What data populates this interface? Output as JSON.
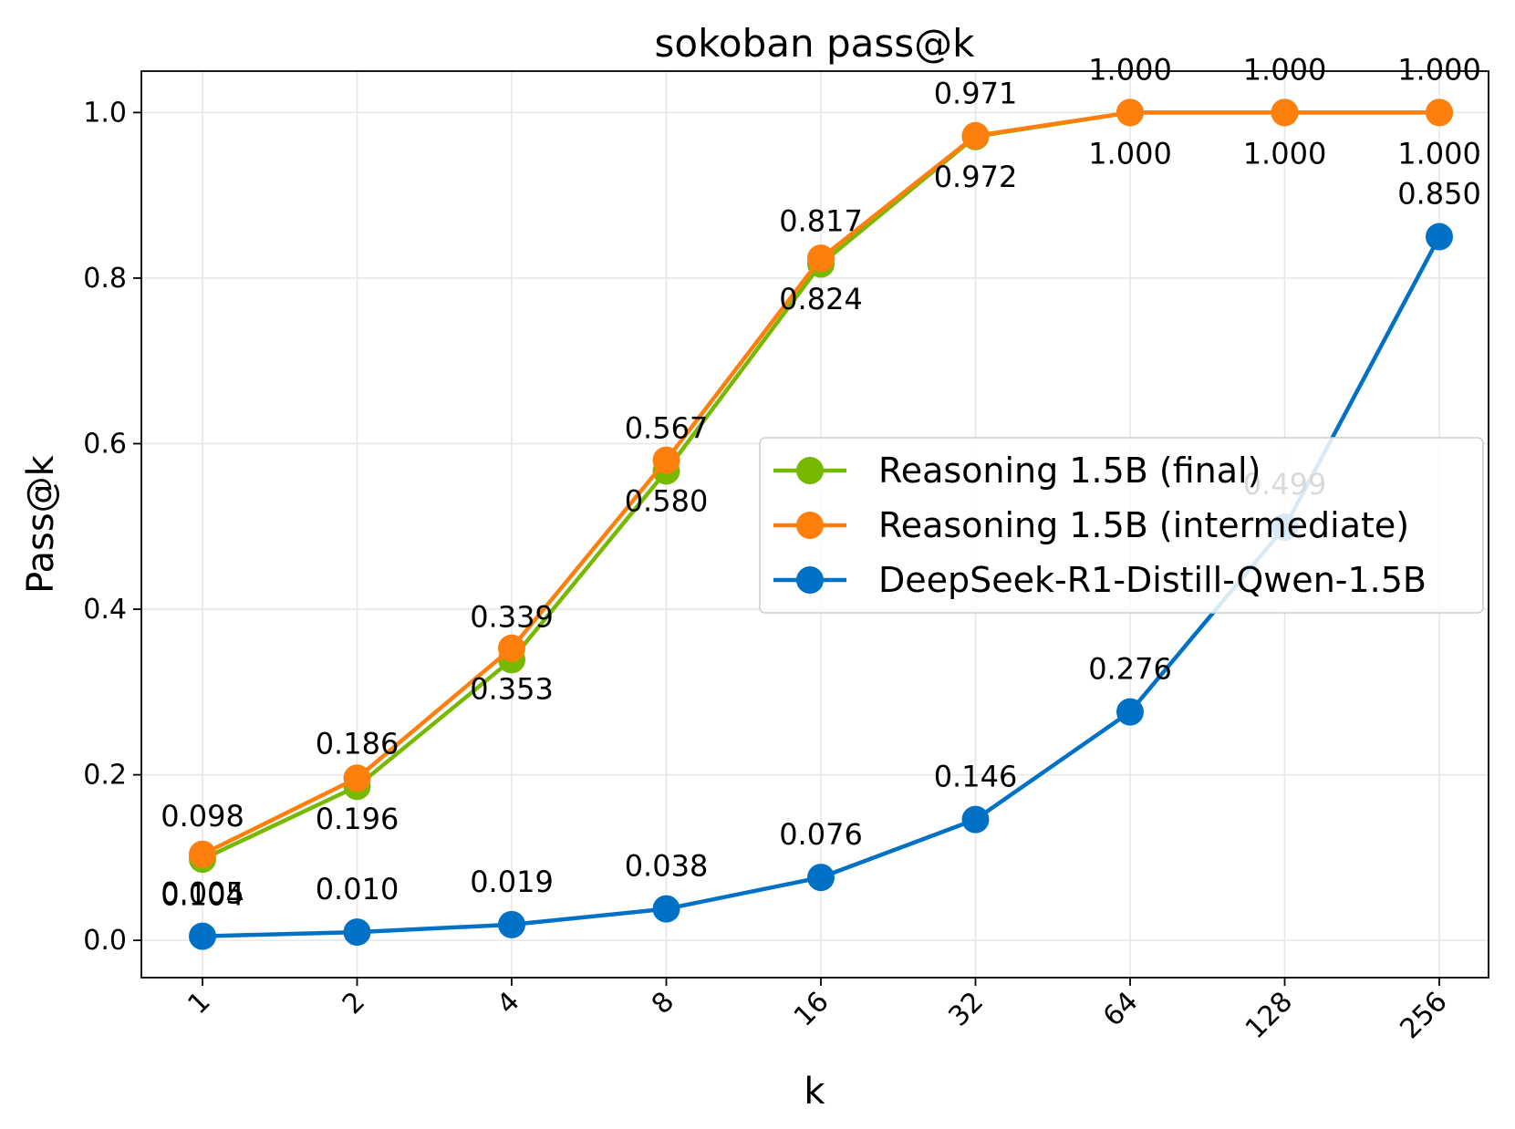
{
  "chart_data": {
    "type": "line",
    "title": "sokoban pass@k",
    "xlabel": "k",
    "ylabel": "Pass@k",
    "categories": [
      "1",
      "2",
      "4",
      "8",
      "16",
      "32",
      "64",
      "128",
      "256"
    ],
    "ylim": [
      -0.045,
      1.05
    ],
    "yticks": [
      "0.0",
      "0.2",
      "0.4",
      "0.6",
      "0.8",
      "1.0"
    ],
    "ytick_values": [
      0,
      0.2,
      0.4,
      0.6,
      0.8,
      1.0
    ],
    "grid": true,
    "legend_position": "center-right",
    "series": [
      {
        "name": "Reasoning 1.5B (final)",
        "color": "#76b900",
        "values": [
          0.098,
          0.186,
          0.339,
          0.567,
          0.817,
          0.971,
          1.0,
          1.0,
          1.0
        ],
        "labels": [
          "0.098",
          "0.186",
          "0.339",
          "0.567",
          "0.817",
          "0.971",
          "1.000",
          "1.000",
          "1.000"
        ],
        "label_side": "above"
      },
      {
        "name": "Reasoning 1.5B (intermediate)",
        "color": "#ff7f0e",
        "values": [
          0.104,
          0.196,
          0.353,
          0.58,
          0.824,
          0.972,
          1.0,
          1.0,
          1.0
        ],
        "labels": [
          "0.104",
          "0.196",
          "0.353",
          "0.580",
          "0.824",
          "0.972",
          "1.000",
          "1.000",
          "1.000"
        ],
        "label_side": "below"
      },
      {
        "name": "DeepSeek-R1-Distill-Qwen-1.5B",
        "color": "#0071c5",
        "values": [
          0.005,
          0.01,
          0.019,
          0.038,
          0.076,
          0.146,
          0.276,
          0.499,
          0.85
        ],
        "labels": [
          "0.005",
          "0.010",
          "0.019",
          "0.038",
          "0.076",
          "0.146",
          "0.276",
          "0.499",
          "0.850"
        ],
        "label_side": "above"
      }
    ]
  }
}
